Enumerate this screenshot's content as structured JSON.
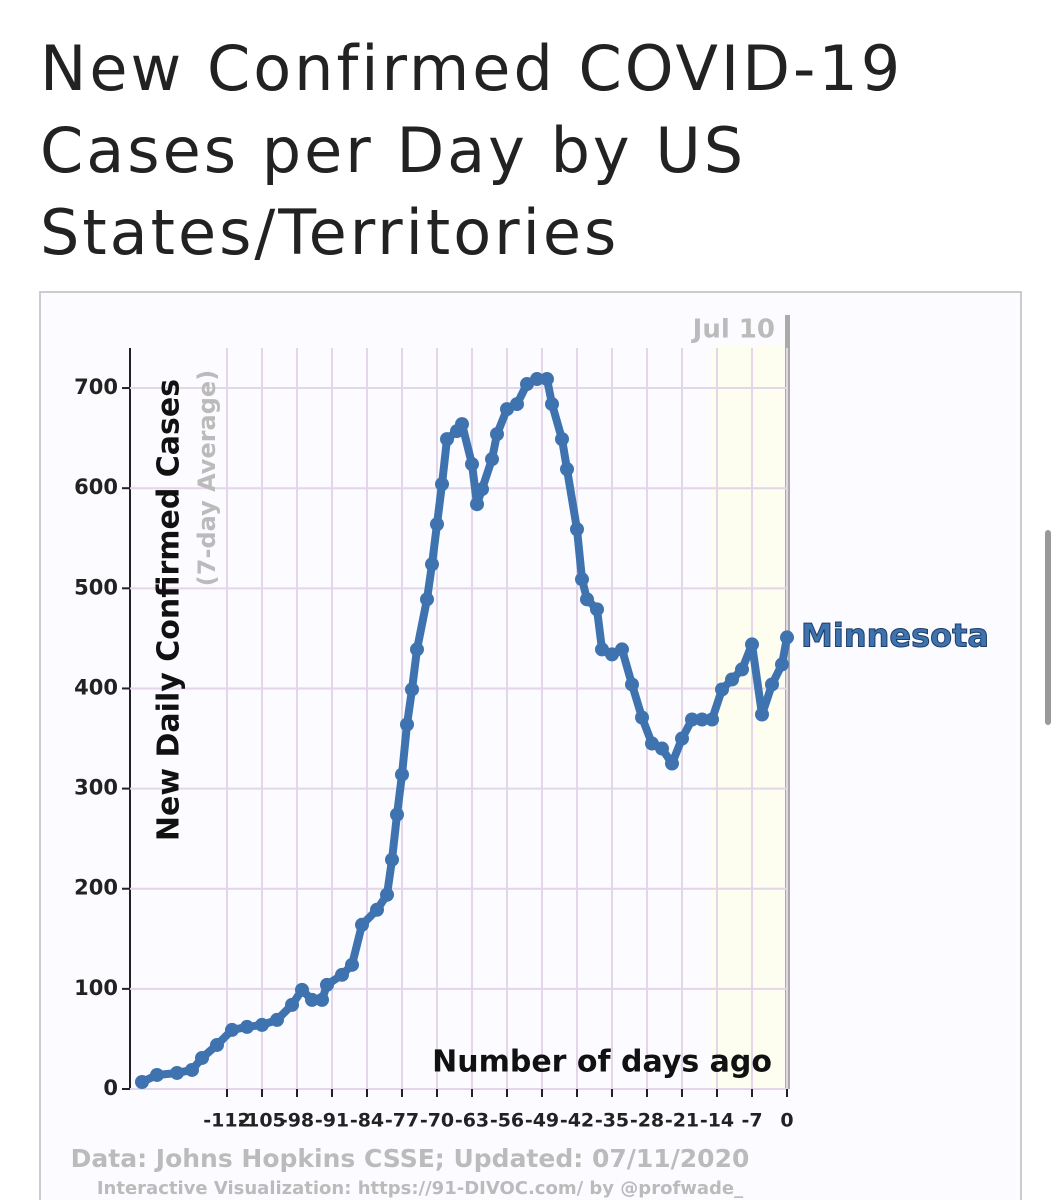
{
  "title": "New Confirmed COVID-19 Cases per Day by US States/Territories",
  "chart_data": {
    "type": "line",
    "ylabel": "New Daily Confirmed Cases",
    "ylabel_sub": "(7-day Average)",
    "xlabel": "Number of days ago",
    "date_annotation": "Jul 10",
    "source": "Data: Johns Hopkins CSSE; Updated: 07/11/2020",
    "credit": "Interactive Visualization: https://91-DIVOC.com/ by @profwade_",
    "x": [
      -129,
      -126,
      -122,
      -119,
      -117,
      -114,
      -111,
      -108,
      -105,
      -102,
      -99,
      -97,
      -95,
      -93,
      -92,
      -89,
      -87,
      -85,
      -82,
      -80,
      -79,
      -78,
      -77,
      -76,
      -75,
      -74,
      -72,
      -71,
      -70,
      -69,
      -68,
      -66,
      -65,
      -63,
      -62,
      -61,
      -59,
      -58,
      -56,
      -54,
      -52,
      -50,
      -48,
      -47,
      -45,
      -44,
      -42,
      -41,
      -40,
      -38,
      -37,
      -35,
      -33,
      -31,
      -29,
      -27,
      -25,
      -23,
      -21,
      -19,
      -17,
      -15,
      -13,
      -11,
      -9,
      -7,
      -5,
      -3,
      -1,
      0
    ],
    "series": [
      {
        "name": "Minnesota",
        "color": "#3e73b0",
        "values": [
          7,
          14,
          16,
          19,
          31,
          44,
          59,
          62,
          64,
          69,
          84,
          99,
          89,
          89,
          104,
          114,
          124,
          164,
          179,
          194,
          229,
          274,
          314,
          364,
          399,
          439,
          489,
          524,
          564,
          604,
          649,
          657,
          664,
          624,
          584,
          599,
          629,
          654,
          679,
          684,
          704,
          709,
          709,
          684,
          649,
          619,
          559,
          509,
          489,
          479,
          439,
          434,
          439,
          404,
          371,
          345,
          340,
          325,
          350,
          369,
          369,
          369,
          399,
          409,
          419,
          444,
          374,
          404,
          424,
          451
        ]
      }
    ],
    "xlim": [
      -130,
      0
    ],
    "xticks": [
      -112,
      -105,
      -98,
      -91,
      -84,
      -77,
      -70,
      -63,
      -56,
      -49,
      -42,
      -35,
      -28,
      -21,
      -14,
      -7,
      0
    ],
    "ylim": [
      0,
      740
    ],
    "yticks": [
      0,
      100,
      200,
      300,
      400,
      500,
      600,
      700
    ],
    "grid": true
  }
}
